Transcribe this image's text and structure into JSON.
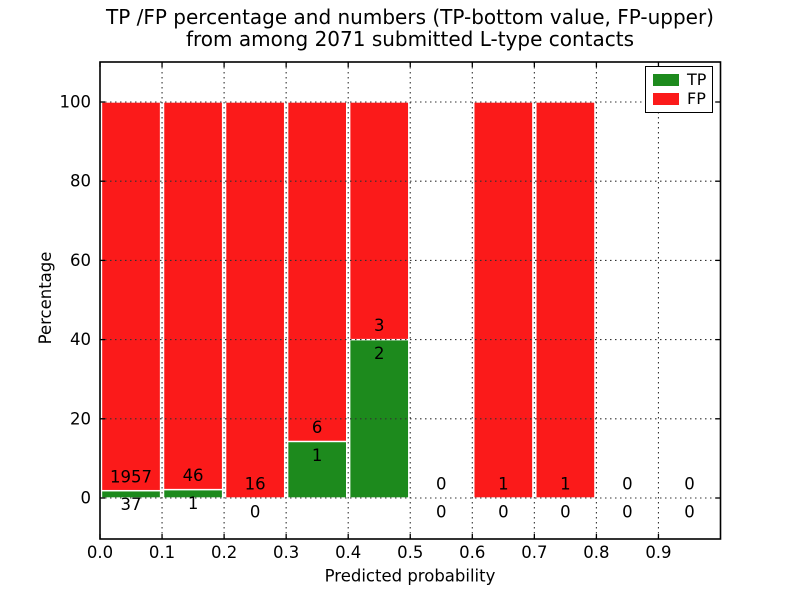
{
  "chart_data": {
    "type": "bar",
    "stacked": true,
    "title_line1": "TP /FP percentage and numbers (TP-bottom value, FP-upper)",
    "title_line2": "from among 2071 submitted L-type contacts",
    "xlabel": "Predicted probability",
    "ylabel": "Percentage",
    "x_tick_labels": [
      "0.0",
      "0.1",
      "0.2",
      "0.3",
      "0.4",
      "0.5",
      "0.6",
      "0.7",
      "0.8",
      "0.9"
    ],
    "y_ticks": [
      0,
      20,
      40,
      60,
      80,
      100
    ],
    "y_tick_labels": [
      "0",
      "20",
      "40",
      "60",
      "80",
      "100"
    ],
    "xlim": [
      0.0,
      1.0
    ],
    "ylim": [
      -10.4,
      110.2
    ],
    "bin_width": 0.1,
    "bins_x0": [
      0.0,
      0.1,
      0.2,
      0.3,
      0.4,
      0.5,
      0.6,
      0.7,
      0.8,
      0.9
    ],
    "series": [
      {
        "name": "TP",
        "color": "#1d8a1d",
        "counts": [
          37,
          1,
          0,
          1,
          2,
          0,
          0,
          0,
          0,
          0
        ]
      },
      {
        "name": "FP",
        "color": "#fb1a1a",
        "counts": [
          1957,
          46,
          16,
          6,
          3,
          0,
          1,
          1,
          0,
          0
        ]
      }
    ],
    "bar_value_unit": "percentage of bin total, stacked to 100%",
    "grid": "dotted, drawn over bars",
    "legend_position": "upper right",
    "bar_edge_color": "#ffffff",
    "axis_color": "#000000"
  }
}
